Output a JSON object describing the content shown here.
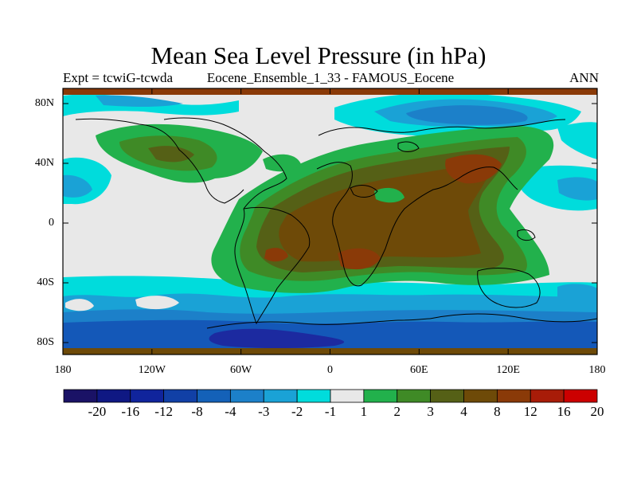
{
  "title": "Mean Sea Level Pressure (in hPa)",
  "left_label": "Expt = tcwiG-tcwda",
  "center_label": "Eocene_Ensemble_1_33 - FAMOUS_Eocene",
  "right_label": "ANN",
  "lat_labels": [
    "80N",
    "40N",
    "0",
    "40S",
    "80S"
  ],
  "lon_labels": [
    "180",
    "120W",
    "60W",
    "0",
    "60E",
    "120E",
    "180"
  ],
  "colorbar": {
    "labels": [
      "-20",
      "-16",
      "-12",
      "-8",
      "-4",
      "-3",
      "-2",
      "-1",
      "1",
      "2",
      "3",
      "4",
      "8",
      "12",
      "16",
      "20"
    ],
    "colors": [
      "#1a1266",
      "#0f1883",
      "#10249c",
      "#1140a6",
      "#1461b8",
      "#1c80c9",
      "#1aa2d6",
      "#00dcdc",
      "#e8e8e8",
      "#22b14c",
      "#3f8a26",
      "#556016",
      "#6e4a08",
      "#8a3a08",
      "#a81c08",
      "#cc0000"
    ]
  },
  "map_palette": {
    "deep_blue": "#1c2aa0",
    "blue": "#1458b8",
    "mid_blue": "#1c80c9",
    "light_blue": "#1aa2d6",
    "cyan": "#00dcdc",
    "neutral": "#e8e8e8",
    "green": "#22b14c",
    "dark_green": "#3f8a26",
    "olive": "#556016",
    "brown": "#6e4a08",
    "red_brown": "#8a3a08",
    "coast": "#000000"
  }
}
